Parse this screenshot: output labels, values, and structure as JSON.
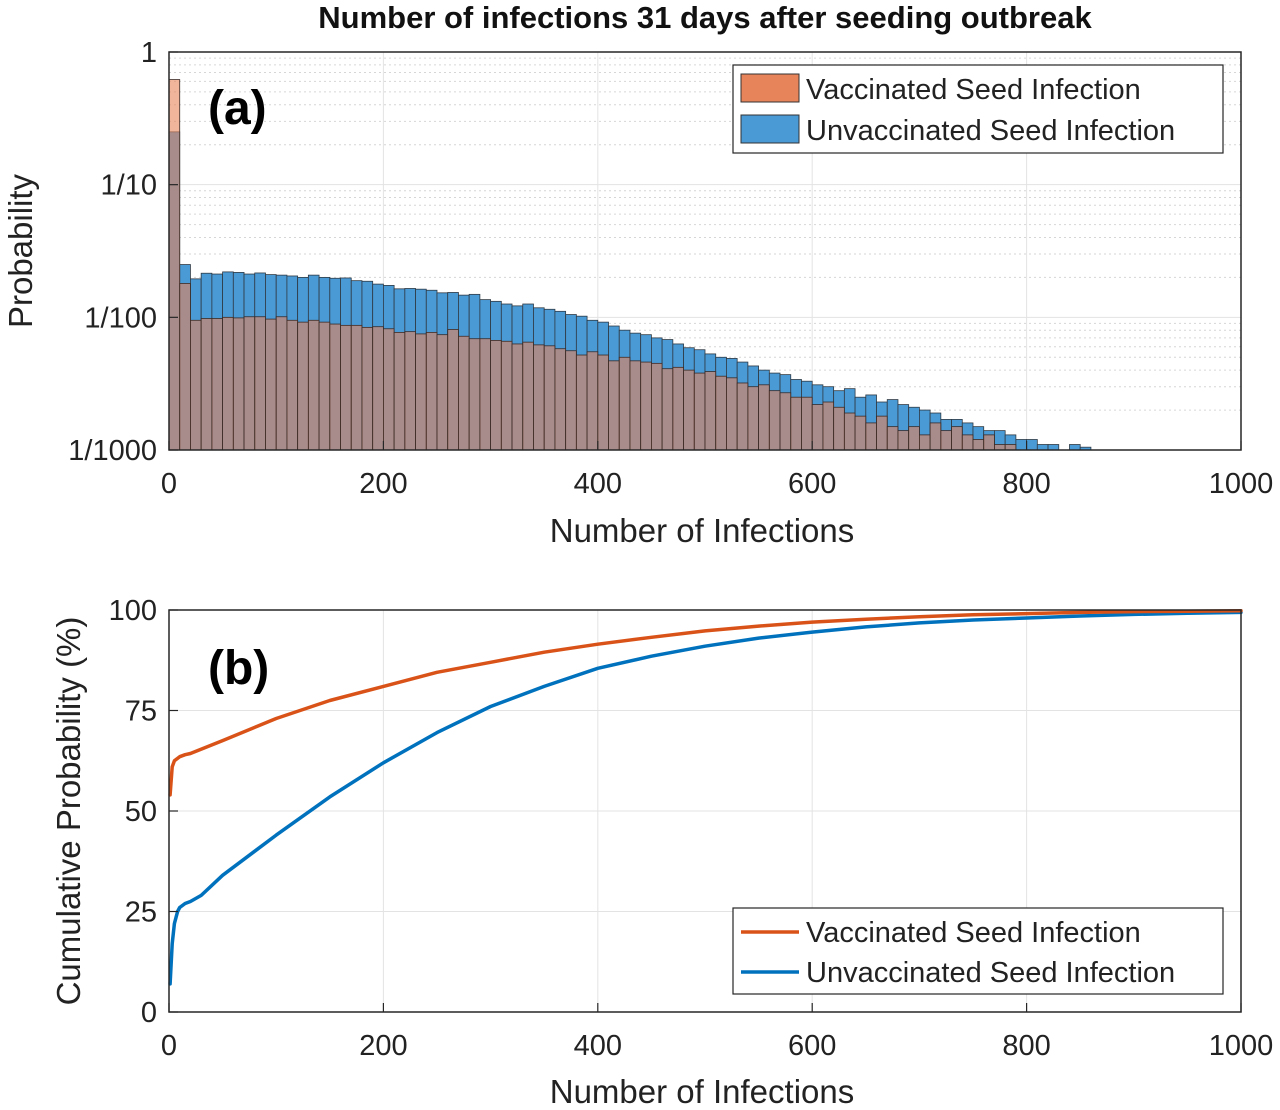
{
  "figure": {
    "title": "Number of infections 31 days after seeding outbreak"
  },
  "colors": {
    "vaccinated_bar": "#e8845a",
    "unvaccinated_bar": "#4a9ad6",
    "vaccinated_line": "#d95319",
    "unvaccinated_line": "#0072bd",
    "overlap": "#a56e62"
  },
  "chart_data": [
    {
      "type": "bar",
      "panel_label": "(a)",
      "xlabel": "Number of Infections",
      "ylabel": "Probability",
      "xlim": [
        0,
        1000
      ],
      "ylim": [
        0.001,
        1
      ],
      "yscale": "log",
      "grid": true,
      "legend_position": "top-right",
      "xticks": [
        0,
        200,
        400,
        600,
        800,
        1000
      ],
      "xtick_labels": [
        "0",
        "200",
        "400",
        "600",
        "800",
        "1000"
      ],
      "yticks": [
        0.001,
        0.01,
        0.1,
        1
      ],
      "ytick_labels": [
        "1/1000",
        "1/100",
        "1/10",
        "1"
      ],
      "bin_width": 10,
      "bin_starts": [
        0,
        10,
        20,
        30,
        40,
        50,
        60,
        70,
        80,
        90,
        100,
        110,
        120,
        130,
        140,
        150,
        160,
        170,
        180,
        190,
        200,
        210,
        220,
        230,
        240,
        250,
        260,
        270,
        280,
        290,
        300,
        310,
        320,
        330,
        340,
        350,
        360,
        370,
        380,
        390,
        400,
        410,
        420,
        430,
        440,
        450,
        460,
        470,
        480,
        490,
        500,
        510,
        520,
        530,
        540,
        550,
        560,
        570,
        580,
        590,
        600,
        610,
        620,
        630,
        640,
        650,
        660,
        670,
        680,
        690,
        700,
        710,
        720,
        730,
        740,
        750,
        760,
        770,
        780,
        790,
        800,
        810,
        820,
        830,
        840,
        850
      ],
      "series": [
        {
          "name": "Vaccinated Seed Infection",
          "values": [
            0.62,
            0.018,
            0.0095,
            0.0098,
            0.0098,
            0.01,
            0.0099,
            0.0101,
            0.0101,
            0.0097,
            0.0101,
            0.0095,
            0.0092,
            0.0095,
            0.0092,
            0.0089,
            0.0087,
            0.0087,
            0.0084,
            0.0085,
            0.0082,
            0.0077,
            0.0078,
            0.0075,
            0.0077,
            0.0074,
            0.0081,
            0.0072,
            0.0069,
            0.0069,
            0.0067,
            0.0066,
            0.0063,
            0.0065,
            0.0062,
            0.0061,
            0.0058,
            0.0056,
            0.0052,
            0.0055,
            0.0052,
            0.0047,
            0.005,
            0.0047,
            0.0046,
            0.0045,
            0.0041,
            0.0042,
            0.004,
            0.0038,
            0.0039,
            0.0036,
            0.0035,
            0.0032,
            0.003,
            0.0031,
            0.0028,
            0.0027,
            0.0025,
            0.0025,
            0.0022,
            0.0023,
            0.0021,
            0.0019,
            0.0018,
            0.0016,
            0.0018,
            0.0015,
            0.0014,
            0.0015,
            0.0013,
            0.0016,
            0.0014,
            0.0015,
            0.0013,
            0.0012,
            0.0013,
            0.0011,
            0.0011,
            0.001,
            0.001,
            0.001,
            0.001,
            0.001,
            0.001,
            0.001
          ]
        },
        {
          "name": "Unvaccinated Seed Infection",
          "values": [
            0.25,
            0.025,
            0.0195,
            0.0215,
            0.0212,
            0.022,
            0.0218,
            0.0212,
            0.0216,
            0.021,
            0.0208,
            0.0205,
            0.02,
            0.0208,
            0.02,
            0.0197,
            0.0198,
            0.0189,
            0.0187,
            0.0178,
            0.0174,
            0.0164,
            0.0165,
            0.0163,
            0.016,
            0.0153,
            0.0154,
            0.0147,
            0.0149,
            0.0136,
            0.0132,
            0.0126,
            0.0122,
            0.0126,
            0.0118,
            0.0115,
            0.0111,
            0.0105,
            0.0102,
            0.0095,
            0.0092,
            0.0086,
            0.008,
            0.0076,
            0.0074,
            0.007,
            0.0068,
            0.0063,
            0.0059,
            0.0057,
            0.0053,
            0.005,
            0.0049,
            0.0046,
            0.0043,
            0.004,
            0.0038,
            0.0037,
            0.0034,
            0.0033,
            0.0031,
            0.003,
            0.0028,
            0.0029,
            0.0025,
            0.0026,
            0.0023,
            0.0024,
            0.0022,
            0.0021,
            0.002,
            0.0019,
            0.0017,
            0.0017,
            0.0016,
            0.0015,
            0.0014,
            0.0014,
            0.0013,
            0.0012,
            0.0012,
            0.0011,
            0.0011,
            0.001,
            0.0011,
            0.00105
          ]
        }
      ]
    },
    {
      "type": "line",
      "panel_label": "(b)",
      "xlabel": "Number of Infections",
      "ylabel": "Cumulative Probability (%)",
      "xlim": [
        0,
        1000
      ],
      "ylim": [
        0,
        100
      ],
      "grid": true,
      "legend_position": "bottom-right",
      "xticks": [
        0,
        200,
        400,
        600,
        800,
        1000
      ],
      "xtick_labels": [
        "0",
        "200",
        "400",
        "600",
        "800",
        "1000"
      ],
      "yticks": [
        0,
        25,
        50,
        75,
        100
      ],
      "ytick_labels": [
        "0",
        "25",
        "50",
        "75",
        "100"
      ],
      "series": [
        {
          "name": "Vaccinated Seed Infection",
          "x": [
            1,
            3,
            5,
            10,
            15,
            20,
            50,
            100,
            150,
            200,
            250,
            300,
            350,
            400,
            450,
            500,
            550,
            600,
            650,
            700,
            750,
            800,
            850,
            900,
            950,
            1000
          ],
          "y": [
            54,
            61,
            62.5,
            63.5,
            64,
            64.3,
            67.5,
            73,
            77.5,
            81,
            84.5,
            87,
            89.5,
            91.5,
            93.2,
            94.8,
            96,
            97,
            97.7,
            98.3,
            98.8,
            99.1,
            99.4,
            99.6,
            99.7,
            99.8
          ]
        },
        {
          "name": "Unvaccinated Seed Infection",
          "x": [
            1,
            3,
            5,
            8,
            10,
            15,
            20,
            30,
            50,
            100,
            150,
            200,
            250,
            300,
            350,
            400,
            450,
            500,
            550,
            600,
            650,
            700,
            750,
            800,
            850,
            900,
            950,
            1000
          ],
          "y": [
            7,
            17,
            22,
            25,
            26,
            27,
            27.5,
            29,
            34,
            44,
            53.5,
            62,
            69.5,
            76,
            81,
            85.5,
            88.5,
            91,
            93,
            94.5,
            95.8,
            96.8,
            97.5,
            98,
            98.5,
            98.9,
            99.2,
            99.4
          ]
        }
      ]
    }
  ]
}
